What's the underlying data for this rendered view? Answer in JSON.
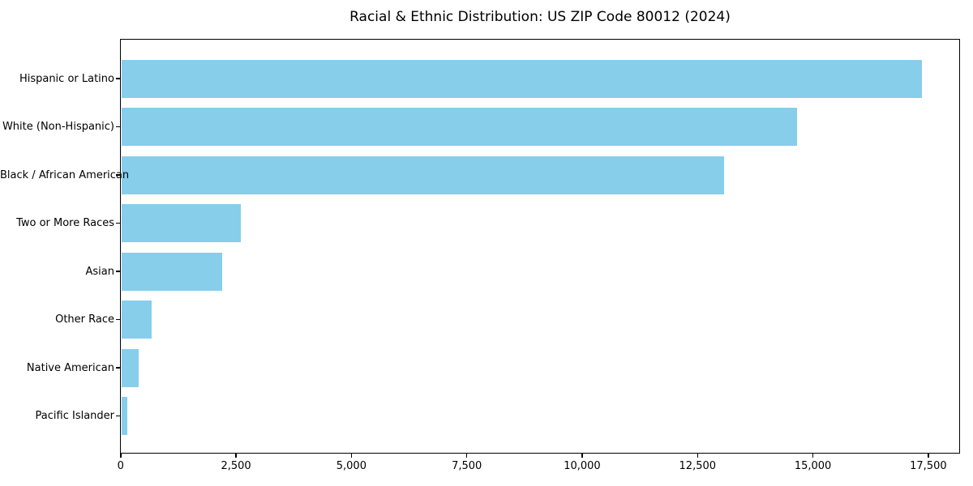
{
  "chart_data": {
    "type": "bar",
    "orientation": "horizontal",
    "title": "Racial & Ethnic Distribution: US ZIP Code 80012 (2024)",
    "xlabel": "",
    "ylabel": "",
    "categories": [
      "Hispanic or Latino",
      "White (Non-Hispanic)",
      "Black / African American",
      "Two or More Races",
      "Asian",
      "Other Race",
      "Native American",
      "Pacific Islander"
    ],
    "values": [
      17340,
      14650,
      13070,
      2590,
      2190,
      655,
      380,
      130
    ],
    "xlim": [
      0,
      18200
    ],
    "x_ticks": [
      0,
      2500,
      5000,
      7500,
      10000,
      12500,
      15000,
      17500
    ],
    "x_tick_labels": [
      "0",
      "2,500",
      "5,000",
      "7,500",
      "10,000",
      "12,500",
      "15,000",
      "17,500"
    ],
    "bar_color": "#87CEEB",
    "background_color": "#ffffff",
    "spine_color": "#000000",
    "grid": false,
    "legend": null
  }
}
